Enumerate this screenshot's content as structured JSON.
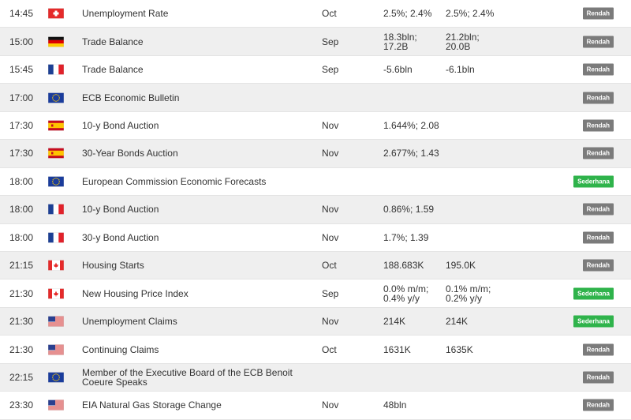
{
  "rows": [
    {
      "time": "14:45",
      "event": "Unemployment Rate",
      "period": "Oct",
      "actual": "2.5%; 2.4%",
      "forecast": "2.5%; 2.4%",
      "badge": {
        "text": "Rendah",
        "color": "#7b7b7b"
      }
    },
    {
      "time": "15:00",
      "event": "Trade Balance",
      "period": "Sep",
      "actual": "18.3bln; 17.2B",
      "forecast": "21.2bln; 20.0B",
      "badge": {
        "text": "Rendah",
        "color": "#7b7b7b"
      }
    },
    {
      "time": "15:45",
      "event": "Trade Balance",
      "period": "Sep",
      "actual": "-5.6bln",
      "forecast": "-6.1bln",
      "badge": {
        "text": "Rendah",
        "color": "#7b7b7b"
      }
    },
    {
      "time": "17:00",
      "event": "ECB Economic Bulletin",
      "badge": {
        "text": "Rendah",
        "color": "#7b7b7b"
      }
    },
    {
      "time": "17:30",
      "event": "10-y Bond Auction",
      "period": "Nov",
      "actual": "1.644%; 2.08",
      "badge": {
        "text": "Rendah",
        "color": "#7b7b7b"
      }
    },
    {
      "time": "17:30",
      "event": "30-Year Bonds Auction",
      "period": "Nov",
      "actual": "2.677%; 1.43",
      "badge": {
        "text": "Rendah",
        "color": "#7b7b7b"
      }
    },
    {
      "time": "18:00",
      "event": "European Commission Economic Forecasts",
      "badge": {
        "text": "Sederhana",
        "color": "#2fb34b"
      }
    },
    {
      "time": "18:00",
      "event": "10-y Bond Auction",
      "period": "Nov",
      "actual": "0.86%; 1.59",
      "badge": {
        "text": "Rendah",
        "color": "#7b7b7b"
      }
    },
    {
      "time": "18:00",
      "event": "30-y Bond Auction",
      "period": "Nov",
      "actual": "1.7%; 1.39",
      "badge": {
        "text": "Rendah",
        "color": "#7b7b7b"
      }
    },
    {
      "time": "21:15",
      "event": "Housing Starts",
      "period": "Oct",
      "actual": "188.683K",
      "forecast": "195.0K",
      "badge": {
        "text": "Rendah",
        "color": "#7b7b7b"
      }
    },
    {
      "time": "21:30",
      "event": "New Housing Price Index",
      "period": "Sep",
      "actual": "0.0% m/m; 0.4% y/y",
      "forecast": "0.1% m/m; 0.2% y/y",
      "badge": {
        "text": "Sederhana",
        "color": "#2fb34b"
      }
    },
    {
      "time": "21:30",
      "event": "Unemployment Claims",
      "period": "Nov",
      "actual": "214K",
      "forecast": "214K",
      "badge": {
        "text": "Sederhana",
        "color": "#2fb34b"
      }
    },
    {
      "time": "21:30",
      "event": "Continuing Claims",
      "period": "Oct",
      "actual": "1631K",
      "forecast": "1635K",
      "badge": {
        "text": "Rendah",
        "color": "#7b7b7b"
      }
    },
    {
      "time": "22:15",
      "event": "Member of the Executive Board of the ECB Benoit Coeure Speaks",
      "badge": {
        "text": "Rendah",
        "color": "#7b7b7b"
      }
    },
    {
      "time": "23:30",
      "event": "EIA Natural Gas Storage Change",
      "period": "Nov",
      "actual": "48bln",
      "badge": {
        "text": "Rendah",
        "color": "#7b7b7b"
      }
    }
  ]
}
